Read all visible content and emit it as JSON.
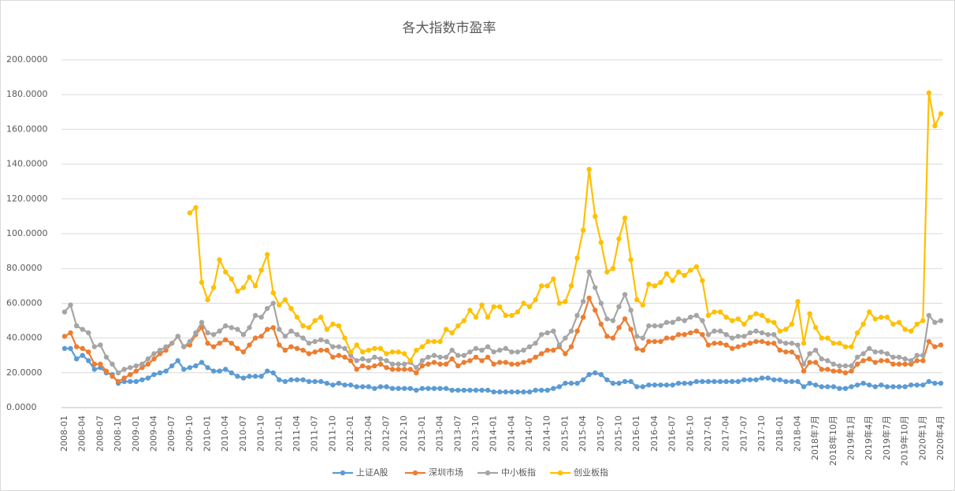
{
  "chart_data": {
    "type": "line",
    "title": "各大指数市盈率",
    "categories": [
      "2008-01",
      null,
      null,
      "2008-04",
      null,
      null,
      "2008-07",
      null,
      null,
      "2008-10",
      null,
      null,
      "2009-01",
      null,
      null,
      "2009-04",
      null,
      null,
      "2009-07",
      null,
      null,
      "2009-10",
      null,
      null,
      "2010-01",
      null,
      null,
      "2010-04",
      null,
      null,
      "2010-07",
      null,
      null,
      "2010-10",
      null,
      null,
      "2011-01",
      null,
      null,
      "2011-04",
      null,
      null,
      "2011-07",
      null,
      null,
      "2011-10",
      null,
      null,
      "2012-01",
      null,
      null,
      "2012-04",
      null,
      null,
      "2012-07",
      null,
      null,
      "2012-10",
      null,
      null,
      "2013-01",
      null,
      null,
      "2013-04",
      null,
      null,
      "2013-07",
      null,
      null,
      "2013-10",
      null,
      null,
      "2014-01",
      null,
      null,
      "2014-04",
      null,
      null,
      "2014-07",
      null,
      null,
      "2014-10",
      null,
      null,
      "2015-01",
      null,
      null,
      "2015-04",
      null,
      null,
      "2015-07",
      null,
      null,
      "2015-10",
      null,
      null,
      "2016-01",
      null,
      null,
      "2016-04",
      null,
      null,
      "2016-07",
      null,
      null,
      "2016-10",
      null,
      null,
      "2017-01",
      null,
      null,
      "2017-04",
      null,
      null,
      "2017-07",
      null,
      null,
      "2017-10",
      null,
      null,
      "2018-01",
      null,
      null,
      "2018-04",
      null,
      null,
      "2018年7月",
      null,
      null,
      "2018年10月",
      null,
      null,
      "2019年1月",
      null,
      null,
      "2019年4月",
      null,
      null,
      "2019年7月",
      null,
      null,
      "2019年10月",
      null,
      null,
      "2020年1月",
      null,
      null,
      "2020年4月"
    ],
    "series": [
      {
        "name": "上证A股",
        "color": "#5b9bd5",
        "values": [
          34,
          34,
          28,
          30,
          27,
          22,
          23,
          20,
          19,
          14,
          15,
          15,
          15,
          16,
          17,
          19,
          20,
          21,
          24,
          27,
          22,
          23,
          24,
          26,
          23,
          21,
          21,
          22,
          20,
          18,
          17,
          18,
          18,
          18,
          21,
          20,
          16,
          15,
          16,
          16,
          16,
          15,
          15,
          15,
          14,
          13,
          14,
          13,
          13,
          12,
          12,
          12,
          11,
          12,
          12,
          11,
          11,
          11,
          11,
          10,
          11,
          11,
          11,
          11,
          11,
          10,
          10,
          10,
          10,
          10,
          10,
          10,
          9,
          9,
          9,
          9,
          9,
          9,
          9,
          10,
          10,
          10,
          11,
          12,
          14,
          14,
          14,
          16,
          19,
          20,
          19,
          16,
          14,
          14,
          15,
          15,
          12,
          12,
          13,
          13,
          13,
          13,
          13,
          14,
          14,
          14,
          15,
          15,
          15,
          15,
          15,
          15,
          15,
          15,
          16,
          16,
          16,
          17,
          17,
          16,
          16,
          15,
          15,
          15,
          12,
          14,
          13,
          12,
          12,
          12,
          11,
          11,
          12,
          13,
          14,
          13,
          12,
          13,
          12,
          12,
          12,
          12,
          13,
          13,
          13,
          15,
          14,
          14
        ]
      },
      {
        "name": "深圳市场",
        "color": "#ed7d31",
        "values": [
          41,
          43,
          35,
          34,
          32,
          25,
          25,
          21,
          18,
          15,
          17,
          19,
          21,
          23,
          25,
          28,
          31,
          33,
          37,
          41,
          35,
          36,
          42,
          46,
          37,
          35,
          37,
          39,
          37,
          34,
          32,
          36,
          40,
          41,
          45,
          46,
          36,
          33,
          35,
          34,
          33,
          31,
          32,
          33,
          33,
          29,
          30,
          29,
          27,
          22,
          24,
          23,
          24,
          25,
          23,
          22,
          22,
          22,
          22,
          20,
          24,
          25,
          26,
          25,
          25,
          28,
          24,
          26,
          27,
          29,
          27,
          29,
          25,
          26,
          26,
          25,
          25,
          26,
          27,
          29,
          31,
          33,
          33,
          35,
          31,
          35,
          44,
          52,
          63,
          56,
          48,
          41,
          40,
          46,
          51,
          45,
          34,
          33,
          38,
          38,
          38,
          40,
          40,
          42,
          42,
          43,
          44,
          42,
          36,
          37,
          37,
          36,
          34,
          35,
          36,
          37,
          38,
          38,
          37,
          37,
          33,
          32,
          32,
          29,
          21,
          26,
          26,
          22,
          22,
          21,
          21,
          20,
          21,
          25,
          27,
          28,
          26,
          27,
          27,
          25,
          25,
          25,
          25,
          27,
          27,
          38,
          35,
          36
        ]
      },
      {
        "name": "中小板指",
        "color": "#a5a5a5",
        "values": [
          55,
          59,
          47,
          45,
          43,
          35,
          36,
          29,
          25,
          20,
          22,
          23,
          24,
          25,
          28,
          31,
          33,
          35,
          37,
          41,
          35,
          38,
          43,
          49,
          43,
          42,
          44,
          47,
          46,
          45,
          42,
          46,
          53,
          52,
          57,
          60,
          45,
          41,
          44,
          42,
          40,
          37,
          38,
          39,
          38,
          35,
          35,
          34,
          30,
          27,
          28,
          27,
          29,
          28,
          27,
          25,
          25,
          25,
          26,
          23,
          27,
          29,
          30,
          29,
          29,
          33,
          30,
          30,
          32,
          34,
          33,
          35,
          32,
          33,
          34,
          32,
          32,
          33,
          35,
          37,
          42,
          43,
          44,
          36,
          40,
          44,
          53,
          61,
          78,
          69,
          60,
          51,
          50,
          58,
          65,
          56,
          41,
          40,
          47,
          47,
          47,
          49,
          49,
          51,
          50,
          52,
          53,
          50,
          42,
          44,
          44,
          42,
          40,
          41,
          41,
          43,
          44,
          43,
          42,
          42,
          38,
          37,
          37,
          36,
          25,
          31,
          33,
          28,
          27,
          25,
          24,
          24,
          24,
          29,
          31,
          34,
          32,
          32,
          31,
          29,
          29,
          28,
          27,
          30,
          30,
          53,
          49,
          50
        ]
      },
      {
        "name": "创业板指",
        "color": "#ffc000",
        "values": [
          null,
          null,
          null,
          null,
          null,
          null,
          null,
          null,
          null,
          null,
          null,
          null,
          null,
          null,
          null,
          null,
          null,
          null,
          null,
          null,
          null,
          112,
          115,
          72,
          62,
          69,
          85,
          78,
          74,
          67,
          69,
          75,
          70,
          79,
          88,
          66,
          59,
          62,
          57,
          52,
          47,
          46,
          50,
          52,
          45,
          48,
          47,
          40,
          32,
          36,
          32,
          33,
          34,
          34,
          31,
          32,
          32,
          31,
          27,
          33,
          35,
          38,
          38,
          38,
          45,
          43,
          47,
          50,
          56,
          52,
          59,
          52,
          58,
          58,
          53,
          53,
          55,
          60,
          58,
          62,
          70,
          70,
          74,
          60,
          61,
          70,
          86,
          102,
          137,
          110,
          95,
          78,
          80,
          97,
          109,
          85,
          62,
          59,
          71,
          70,
          72,
          77,
          73,
          78,
          76,
          79,
          81,
          73,
          53,
          55,
          55,
          52,
          50,
          51,
          48,
          52,
          54,
          53,
          50,
          49,
          44,
          45,
          48,
          61,
          37,
          54,
          46,
          40,
          40,
          37,
          37,
          35,
          35,
          43,
          48,
          55,
          51,
          52,
          52,
          48,
          49,
          45,
          44,
          48,
          50,
          181,
          162,
          169
        ]
      }
    ],
    "ylim": [
      0,
      200
    ],
    "yticks": [
      {
        "value": 0,
        "label": "0.0000"
      },
      {
        "value": 20,
        "label": "20.0000"
      },
      {
        "value": 40,
        "label": "40.0000"
      },
      {
        "value": 60,
        "label": "60.0000"
      },
      {
        "value": 80,
        "label": "80.0000"
      },
      {
        "value": 100,
        "label": "100.0000"
      },
      {
        "value": 120,
        "label": "120.0000"
      },
      {
        "value": 140,
        "label": "140.0000"
      },
      {
        "value": 160,
        "label": "160.0000"
      },
      {
        "value": 180,
        "label": "180.0000"
      },
      {
        "value": 200,
        "label": "200.0000"
      }
    ],
    "grid": true,
    "legend": "bottom"
  }
}
